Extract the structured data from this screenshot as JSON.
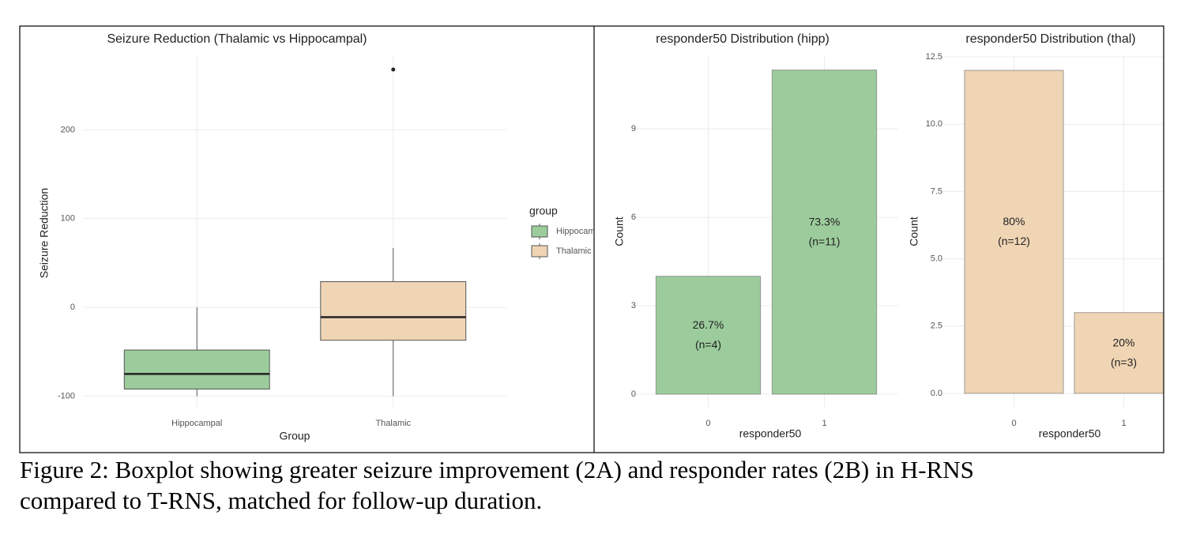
{
  "chart_data": [
    {
      "type": "box",
      "title": "Seizure Reduction (Thalamic vs Hippocampal)",
      "xlabel": "Group",
      "ylabel": "Seizure Reduction",
      "categories": [
        "Hippocampal",
        "Thalamic"
      ],
      "legend_title": "group",
      "series": [
        {
          "name": "Hippocampal",
          "color": "#9ccc9c",
          "min": -100,
          "q1": -92,
          "median": -75,
          "q3": -48,
          "max": 0,
          "outliers": []
        },
        {
          "name": "Thalamic",
          "color": "#f0d5b5",
          "min": -100,
          "q1": -37,
          "median": -11,
          "q3": 29,
          "max": 67,
          "outliers": [
            268
          ]
        }
      ],
      "ylim": [
        -112,
        284
      ],
      "yticks": [
        -100,
        0,
        100,
        200
      ],
      "grid": true
    },
    {
      "type": "bar",
      "title": "responder50 Distribution (hipp)",
      "xlabel": "responder50",
      "ylabel": "Count",
      "categories": [
        "0",
        "1"
      ],
      "values": [
        4,
        11
      ],
      "percent_labels": [
        "26.7%",
        "73.3%"
      ],
      "value_labels": [
        "(n=4)",
        "(n=11)"
      ],
      "color": "#9ccc9c",
      "ylim": [
        -0.43,
        11.5
      ],
      "yticks": [
        0,
        3,
        6,
        9
      ],
      "grid": true
    },
    {
      "type": "bar",
      "title": "responder50 Distribution (thal)",
      "xlabel": "responder50",
      "ylabel": "Count",
      "categories": [
        "0",
        "1"
      ],
      "values": [
        12,
        3
      ],
      "percent_labels": [
        "80%",
        "20%"
      ],
      "value_labels": [
        "(n=12)",
        "(n=3)"
      ],
      "color": "#f0d5b5",
      "ylim": [
        -0.5,
        12.56
      ],
      "yticks": [
        {
          "value": 0,
          "label": "0.0"
        },
        {
          "value": 2.5,
          "label": "2.5"
        },
        {
          "value": 5,
          "label": "5.0"
        },
        {
          "value": 7.5,
          "label": "7.5"
        },
        {
          "value": 10,
          "label": "10.0"
        },
        {
          "value": 12.5,
          "label": "12.5"
        }
      ],
      "grid": true
    }
  ],
  "caption": [
    "Figure 2: Boxplot showing greater seizure improvement (2A) and responder rates (2B) in H-RNS",
    "compared to T-RNS, matched for follow-up duration."
  ]
}
